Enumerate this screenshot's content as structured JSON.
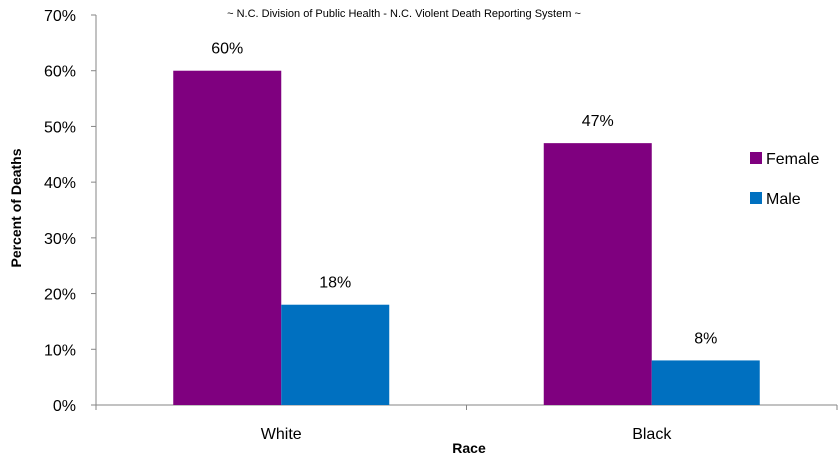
{
  "chart_data": {
    "type": "bar",
    "subtitle": "~ N.C. Division of Public Health - N.C. Violent Death Reporting System ~",
    "xlabel": "Race",
    "ylabel": "Percent of Deaths",
    "categories": [
      "White",
      "Black"
    ],
    "series": [
      {
        "name": "Female",
        "values": [
          60,
          47
        ],
        "labels": [
          "60%",
          "47%"
        ],
        "color": "#7f007f"
      },
      {
        "name": "Male",
        "values": [
          18,
          8
        ],
        "labels": [
          "18%",
          "8%"
        ],
        "color": "#0070c0"
      }
    ],
    "ylim": [
      0,
      70
    ],
    "yticks": [
      0,
      10,
      20,
      30,
      40,
      50,
      60,
      70
    ],
    "ytick_labels": [
      "0%",
      "10%",
      "20%",
      "30%",
      "40%",
      "50%",
      "60%",
      "70%"
    ],
    "grid": false,
    "legend_position": "right"
  }
}
